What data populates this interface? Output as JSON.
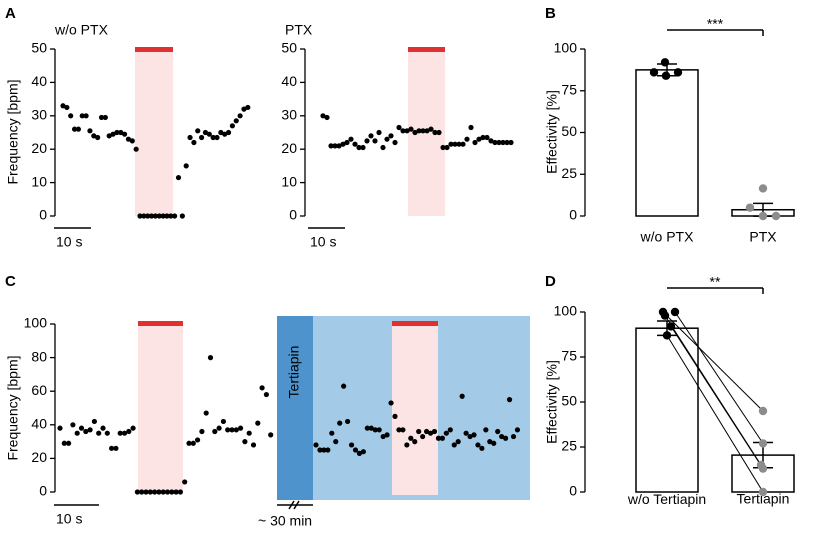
{
  "chart_data": [
    {
      "type": "dots",
      "panel": "A",
      "title": "w/o PTX",
      "ylabel": "Frequency [bpm]",
      "scale_label": "10 s",
      "ylim": [
        0,
        50
      ],
      "yticks": [
        0,
        10,
        20,
        30,
        40,
        50
      ],
      "values": [
        33,
        32.5,
        30,
        26,
        26,
        30,
        30,
        25.5,
        24,
        23.5,
        29.5,
        29.5,
        24,
        24.5,
        25,
        25,
        24.5,
        23,
        22.5,
        20,
        0,
        0,
        0,
        0,
        0,
        0,
        0,
        0,
        0,
        0,
        11.5,
        0,
        15,
        23.5,
        22,
        25.5,
        23.5,
        25,
        24.5,
        23.5,
        23.5,
        25,
        24.5,
        25,
        27,
        28.5,
        30,
        32,
        32.5
      ]
    },
    {
      "type": "dots",
      "title": "PTX",
      "scale_label": "10 s",
      "ylim": [
        0,
        50
      ],
      "yticks": [
        0,
        10,
        20,
        30,
        40,
        50
      ],
      "values": [
        30,
        29.5,
        21,
        21,
        21,
        21.5,
        22,
        23,
        21.5,
        20.5,
        20.5,
        22.5,
        24,
        22.5,
        25,
        20.5,
        23,
        24,
        22,
        26.5,
        25.5,
        25.5,
        26,
        25,
        25.5,
        25.5,
        25.5,
        26,
        25,
        25,
        20.5,
        20.5,
        21.5,
        21.5,
        21.5,
        21.5,
        23,
        26.5,
        22,
        23,
        23.5,
        23.5,
        22.5,
        22,
        22,
        22,
        22,
        22
      ]
    },
    {
      "type": "bar",
      "panel": "B",
      "ylabel": "Effectivity [%]",
      "significance": "***",
      "ylim": [
        0,
        100
      ],
      "yticks": [
        0,
        25,
        50,
        75,
        100
      ],
      "categories": [
        "w/o PTX",
        "PTX"
      ],
      "values": [
        87.5,
        3.75
      ],
      "errors": [
        3.5,
        3.8
      ],
      "points": [
        [
          92,
          86,
          86,
          84
        ],
        [
          16.5,
          5,
          0,
          0
        ]
      ],
      "point_colors": [
        "#000000",
        "#8c8c8c"
      ]
    },
    {
      "type": "dots_break",
      "panel": "C",
      "ylabel": "Frequency [bpm]",
      "scale_label": "10 s",
      "break_label": "~ 30 min",
      "treatment": "Tertiapin",
      "ylim": [
        0,
        100
      ],
      "yticks": [
        0,
        20,
        40,
        60,
        80,
        100
      ],
      "segments": [
        {
          "values": [
            38,
            29,
            29,
            40,
            35,
            38,
            36,
            37,
            42,
            35,
            38,
            35,
            26,
            26,
            35,
            35,
            36,
            38,
            0,
            0,
            0,
            0,
            0,
            0,
            0,
            0,
            0,
            0,
            0,
            6,
            29,
            29,
            31,
            36,
            47,
            80,
            36,
            38,
            42,
            37,
            37,
            37,
            38,
            30,
            35,
            28,
            41,
            62,
            58,
            34
          ]
        },
        {
          "values": [
            28,
            25,
            25,
            25,
            35,
            30,
            41,
            63,
            42,
            28,
            25,
            23,
            24,
            38,
            38,
            37,
            37,
            33,
            34,
            53,
            45,
            37,
            37,
            28,
            32,
            30,
            36,
            33,
            36,
            35,
            36,
            32,
            32,
            35,
            37,
            28,
            30,
            57,
            35,
            33,
            34,
            28,
            26,
            37,
            30,
            29,
            36,
            33,
            32,
            55,
            33,
            37
          ]
        }
      ]
    },
    {
      "type": "paired_bar",
      "panel": "D",
      "ylabel": "Effectivity [%]",
      "significance": "**",
      "ylim": [
        0,
        100
      ],
      "yticks": [
        0,
        25,
        50,
        75,
        100
      ],
      "categories": [
        "w/o Tertiapin",
        "Tertiapin"
      ],
      "values": [
        91,
        20.5
      ],
      "errors": [
        4,
        7
      ],
      "points": [
        [
          100,
          100,
          98,
          92,
          87
        ],
        [
          45,
          27,
          15,
          13,
          0
        ]
      ],
      "point_colors": [
        "#000000",
        "#8c8c8c"
      ]
    }
  ]
}
